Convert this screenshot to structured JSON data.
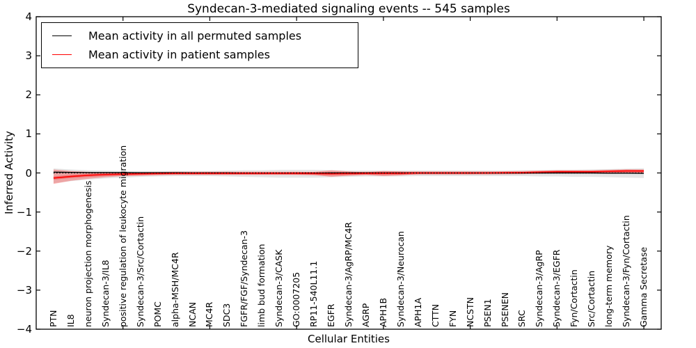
{
  "title": "Syndecan-3-mediated signaling events -- 545 samples",
  "axes": {
    "x_label": "Cellular Entities",
    "y_label": "Inferred Activity"
  },
  "legend": {
    "items": [
      {
        "label": "Mean activity in all permuted samples",
        "color": "#000000"
      },
      {
        "label": "Mean activity in patient samples",
        "color": "#ff0000"
      }
    ]
  },
  "chart_data": {
    "type": "line",
    "title": "Syndecan-3-mediated signaling events -- 545 samples",
    "xlabel": "Cellular Entities",
    "ylabel": "Inferred Activity",
    "ylim": [
      -4,
      4
    ],
    "grid": false,
    "legend_position": "upper left",
    "frame_color": "#000000",
    "yticks": [
      {
        "v": 4,
        "label": "4"
      },
      {
        "v": 3,
        "label": "3"
      },
      {
        "v": 2,
        "label": "2"
      },
      {
        "v": 1,
        "label": "1"
      },
      {
        "v": 0,
        "label": "0"
      },
      {
        "v": -1,
        "label": "−1"
      },
      {
        "v": -2,
        "label": "−2"
      },
      {
        "v": -3,
        "label": "−3"
      },
      {
        "v": -4,
        "label": "−4"
      }
    ],
    "xtick_every": 5,
    "categories": [
      "PTN",
      "IL8",
      "neuron projection morphogenesis",
      "Syndecan-3/IL8",
      "positive regulation of leukocyte migration",
      "Syndecan-3/Src/Cortactin",
      "POMC",
      "alpha-MSH/MC4R",
      "NCAN",
      "MC4R",
      "SDC3",
      "FGFR/FGF/Syndecan-3",
      "limb bud formation",
      "Syndecan-3/CASK",
      "GO:0007205",
      "RP11-540L11.1",
      "EGFR",
      "Syndecan-3/AgRP/MC4R",
      "AGRP",
      "APH1B",
      "Syndecan-3/Neurocan",
      "APH1A",
      "CTTN",
      "FYN",
      "NCSTN",
      "PSEN1",
      "PSENEN",
      "SRC",
      "Syndecan-3/AgRP",
      "Syndecan-3/EGFR",
      "Fyn/Cortactin",
      "Src/Cortactin",
      "long-term memory",
      "Syndecan-3/Fyn/Cortactin",
      "Gamma Secretase"
    ],
    "series": [
      {
        "name": "Mean activity in all permuted samples",
        "color": "#000000",
        "style": "solid",
        "values": [
          0.02,
          0.015,
          0.01,
          0.01,
          0.01,
          0.005,
          0.005,
          0.005,
          0,
          0,
          0,
          -0.005,
          -0.005,
          -0.005,
          -0.005,
          -0.005,
          0,
          0,
          0,
          0,
          0,
          0,
          0,
          0,
          0,
          0,
          0,
          0,
          0,
          0,
          0,
          0,
          -0.005,
          -0.005,
          -0.01
        ]
      },
      {
        "name": "Mean activity in patient samples",
        "color": "#ff0000",
        "style": "solid",
        "values": [
          -0.13,
          -0.09,
          -0.06,
          -0.04,
          -0.03,
          -0.02,
          -0.015,
          -0.01,
          -0.01,
          -0.01,
          -0.01,
          -0.01,
          -0.01,
          -0.01,
          -0.01,
          -0.015,
          -0.02,
          -0.015,
          -0.01,
          -0.01,
          -0.01,
          0,
          0,
          0,
          0,
          0,
          0.005,
          0.01,
          0.02,
          0.03,
          0.03,
          0.03,
          0.04,
          0.05,
          0.05
        ]
      },
      {
        "name": "zero-reference-dotted",
        "color": "#000000",
        "style": "dotted",
        "values": [
          0,
          0,
          0,
          0,
          0,
          0,
          0,
          0,
          0,
          0,
          0,
          0,
          0,
          0,
          0,
          0,
          0,
          0,
          0,
          0,
          0,
          0,
          0,
          0,
          0,
          0,
          0,
          0,
          0,
          0,
          0,
          0,
          0,
          0,
          0
        ]
      }
    ],
    "bands": [
      {
        "name": "permuted-samples-range",
        "color": "rgba(0,0,0,0.10)",
        "upper": [
          0.115,
          0.09,
          0.07,
          0.06,
          0.05,
          0.05,
          0.05,
          0.05,
          0.05,
          0.05,
          0.06,
          0.07,
          0.07,
          0.08,
          0.08,
          0.08,
          0.07,
          0.06,
          0.06,
          0.06,
          0.06,
          0.06,
          0.06,
          0.06,
          0.06,
          0.06,
          0.06,
          0.07,
          0.07,
          0.08,
          0.08,
          0.09,
          0.1,
          0.11,
          0.12
        ],
        "lower": [
          -0.26,
          -0.21,
          -0.17,
          -0.14,
          -0.12,
          -0.1,
          -0.09,
          -0.08,
          -0.08,
          -0.08,
          -0.09,
          -0.1,
          -0.11,
          -0.12,
          -0.12,
          -0.12,
          -0.11,
          -0.1,
          -0.09,
          -0.09,
          -0.09,
          -0.08,
          -0.08,
          -0.08,
          -0.08,
          -0.08,
          -0.08,
          -0.08,
          -0.09,
          -0.09,
          -0.1,
          -0.1,
          -0.11,
          -0.12,
          -0.13
        ]
      },
      {
        "name": "patient-samples-range",
        "color": "rgba(255,0,0,0.28)",
        "upper": [
          0.09,
          0.05,
          0.03,
          0.02,
          0.01,
          0.01,
          0.01,
          0.01,
          0.015,
          0.02,
          0.02,
          0.02,
          0.02,
          0.02,
          0.025,
          0.03,
          0.07,
          0.04,
          0.02,
          0.05,
          0.04,
          0.02,
          0.02,
          0.02,
          0.02,
          0.02,
          0.03,
          0.03,
          0.05,
          0.06,
          0.06,
          0.06,
          0.07,
          0.09,
          0.08
        ],
        "lower": [
          -0.28,
          -0.2,
          -0.15,
          -0.11,
          -0.08,
          -0.07,
          -0.05,
          -0.04,
          -0.04,
          -0.04,
          -0.04,
          -0.04,
          -0.04,
          -0.04,
          -0.045,
          -0.05,
          -0.1,
          -0.07,
          -0.05,
          -0.08,
          -0.06,
          -0.03,
          -0.03,
          -0.03,
          -0.03,
          -0.02,
          -0.02,
          -0.02,
          -0.01,
          -0.01,
          0,
          0,
          -0.005,
          0.01,
          0.005
        ]
      }
    ]
  }
}
